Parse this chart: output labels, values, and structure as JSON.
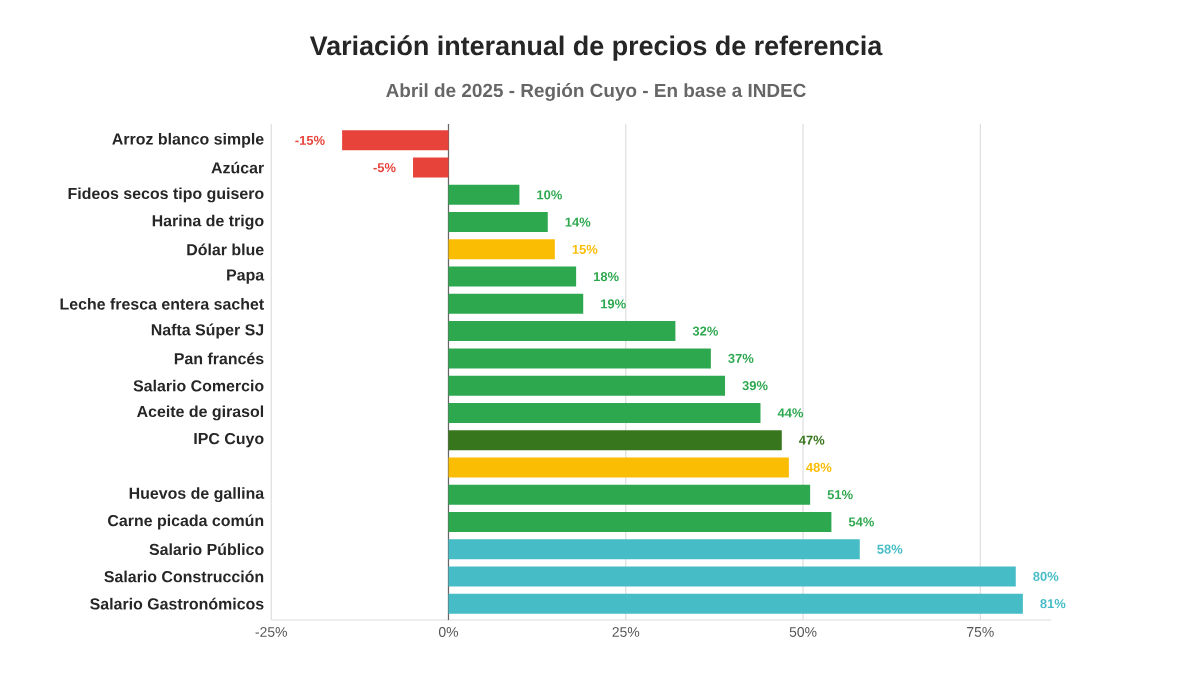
{
  "chart_data": {
    "type": "bar",
    "orientation": "horizontal",
    "title": "Variación interanual de precios de referencia",
    "subtitle": "Abril de 2025 - Región Cuyo - En base a INDEC",
    "categories": [
      "Arroz blanco simple",
      "Azúcar",
      "Fideos secos tipo guisero",
      "Harina de trigo",
      "Dólar blue",
      "Papa",
      "Leche fresca entera sachet",
      "Nafta Súper SJ",
      "Pan francés",
      "Salario Comercio",
      "Aceite de girasol",
      "IPC Cuyo",
      null,
      "Huevos de gallina",
      "Carne picada común",
      "Salario Público",
      "Salario Construcción",
      "Salario Gastronómicos"
    ],
    "values": [
      -15,
      -5,
      10,
      14,
      15,
      18,
      19,
      32,
      37,
      39,
      44,
      47,
      48,
      51,
      54,
      58,
      80,
      81
    ],
    "value_labels": [
      "-15%",
      "-5%",
      "10%",
      "14%",
      "15%",
      "18%",
      "19%",
      "32%",
      "37%",
      "39%",
      "44%",
      "47%",
      "48%",
      "51%",
      "54%",
      "58%",
      "80%",
      "81%"
    ],
    "colors": [
      "#e8433a",
      "#e8433a",
      "#2ea84f",
      "#2ea84f",
      "#fbbc04",
      "#2ea84f",
      "#2ea84f",
      "#2ea84f",
      "#2ea84f",
      "#2ea84f",
      "#2ea84f",
      "#38761d",
      "#fbbc04",
      "#2ea84f",
      "#2ea84f",
      "#46bdc6",
      "#46bdc6",
      "#46bdc6"
    ],
    "xlim": [
      -25,
      85
    ],
    "xticks": [
      {
        "value": -25,
        "label": "-25%"
      },
      {
        "value": 0,
        "label": "0%"
      },
      {
        "value": 25,
        "label": "25%"
      },
      {
        "value": 50,
        "label": "50%"
      },
      {
        "value": 75,
        "label": "75%"
      }
    ],
    "grid": "x"
  }
}
